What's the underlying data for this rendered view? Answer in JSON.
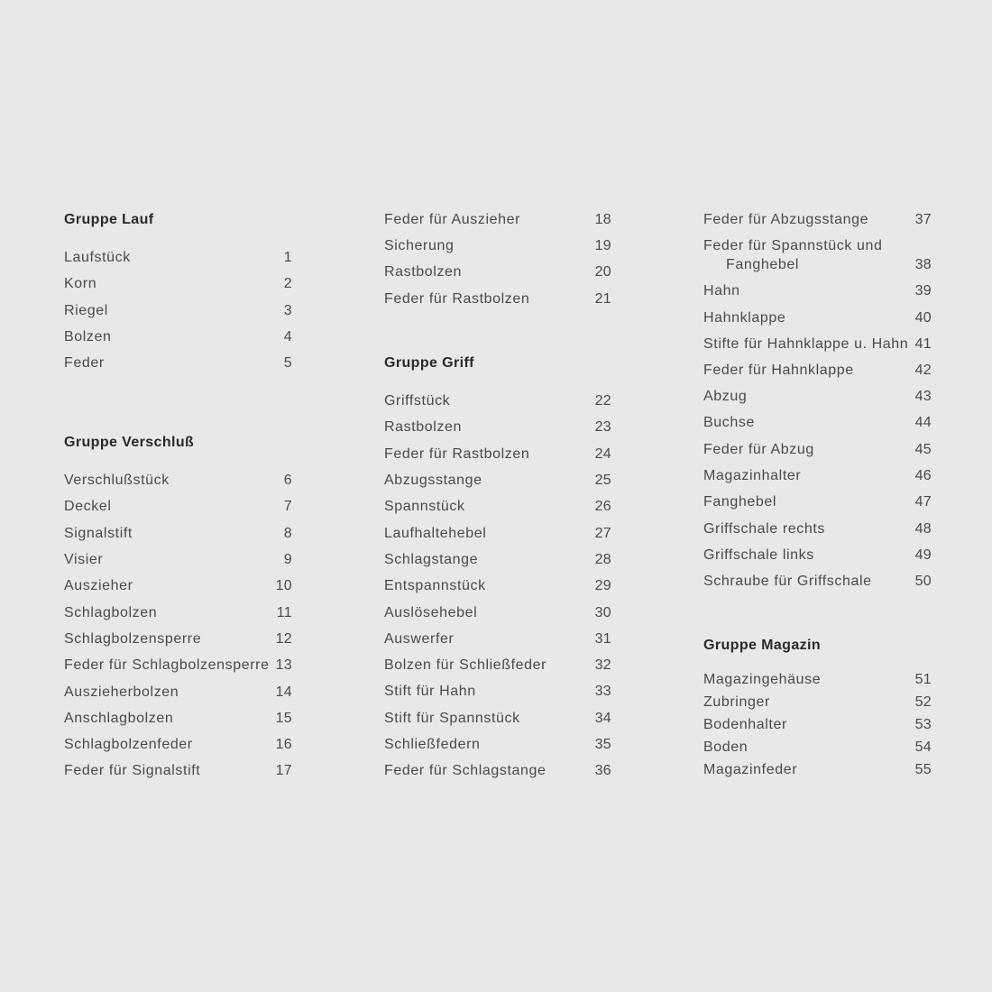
{
  "columns": [
    {
      "entries": [
        {
          "type": "heading",
          "text": "Gruppe Lauf"
        },
        {
          "type": "item",
          "name": "Laufstück",
          "number": "1"
        },
        {
          "type": "item",
          "name": "Korn",
          "number": "2"
        },
        {
          "type": "item",
          "name": "Riegel",
          "number": "3"
        },
        {
          "type": "item",
          "name": "Bolzen",
          "number": "4"
        },
        {
          "type": "item",
          "name": "Feder",
          "number": "5"
        },
        {
          "type": "heading",
          "text": "Gruppe Verschluß"
        },
        {
          "type": "item",
          "name": "Verschlußstück",
          "number": "6"
        },
        {
          "type": "item",
          "name": "Deckel",
          "number": "7"
        },
        {
          "type": "item",
          "name": "Signalstift",
          "number": "8"
        },
        {
          "type": "item",
          "name": "Visier",
          "number": "9"
        },
        {
          "type": "item",
          "name": "Auszieher",
          "number": "10"
        },
        {
          "type": "item",
          "name": "Schlagbolzen",
          "number": "11"
        },
        {
          "type": "item",
          "name": "Schlagbolzensperre",
          "number": "12"
        },
        {
          "type": "item",
          "name": "Feder für Schlagbolzensperre",
          "number": "13"
        },
        {
          "type": "item",
          "name": "Auszieherbolzen",
          "number": "14"
        },
        {
          "type": "item",
          "name": "Anschlagbolzen",
          "number": "15"
        },
        {
          "type": "item",
          "name": "Schlagbolzenfeder",
          "number": "16"
        },
        {
          "type": "item",
          "name": "Feder für Signalstift",
          "number": "17"
        }
      ]
    },
    {
      "entries": [
        {
          "type": "item",
          "name": "Feder für Auszieher",
          "number": "18"
        },
        {
          "type": "item",
          "name": "Sicherung",
          "number": "19"
        },
        {
          "type": "item",
          "name": "Rastbolzen",
          "number": "20"
        },
        {
          "type": "item",
          "name": "Feder für Rastbolzen",
          "number": "21"
        },
        {
          "type": "heading",
          "text": "Gruppe Griff"
        },
        {
          "type": "item",
          "name": "Griffstück",
          "number": "22"
        },
        {
          "type": "item",
          "name": "Rastbolzen",
          "number": "23"
        },
        {
          "type": "item",
          "name": "Feder für Rastbolzen",
          "number": "24"
        },
        {
          "type": "item",
          "name": "Abzugsstange",
          "number": "25"
        },
        {
          "type": "item",
          "name": "Spannstück",
          "number": "26"
        },
        {
          "type": "item",
          "name": "Laufhaltehebel",
          "number": "27"
        },
        {
          "type": "item",
          "name": "Schlagstange",
          "number": "28"
        },
        {
          "type": "item",
          "name": "Entspannstück",
          "number": "29"
        },
        {
          "type": "item",
          "name": "Auslösehebel",
          "number": "30"
        },
        {
          "type": "item",
          "name": "Auswerfer",
          "number": "31"
        },
        {
          "type": "item",
          "name": "Bolzen für Schließfeder",
          "number": "32"
        },
        {
          "type": "item",
          "name": "Stift für Hahn",
          "number": "33"
        },
        {
          "type": "item",
          "name": "Stift für Spannstück",
          "number": "34"
        },
        {
          "type": "item",
          "name": "Schließfedern",
          "number": "35"
        },
        {
          "type": "item",
          "name": "Feder für Schlagstange",
          "number": "36"
        }
      ]
    },
    {
      "entries": [
        {
          "type": "item",
          "name": "Feder für Abzugsstange",
          "number": "37"
        },
        {
          "type": "item",
          "name": "Feder für Spannstück und",
          "name2": "Fanghebel",
          "number": "38"
        },
        {
          "type": "item",
          "name": "Hahn",
          "number": "39"
        },
        {
          "type": "item",
          "name": "Hahnklappe",
          "number": "40"
        },
        {
          "type": "item",
          "name": "Stifte für Hahnklappe u. Hahn",
          "number": "41"
        },
        {
          "type": "item",
          "name": "Feder für Hahnklappe",
          "number": "42"
        },
        {
          "type": "item",
          "name": "Abzug",
          "number": "43"
        },
        {
          "type": "item",
          "name": "Buchse",
          "number": "44"
        },
        {
          "type": "item",
          "name": "Feder für Abzug",
          "number": "45"
        },
        {
          "type": "item",
          "name": "Magazinhalter",
          "number": "46"
        },
        {
          "type": "item",
          "name": "Fanghebel",
          "number": "47"
        },
        {
          "type": "item",
          "name": "Griffschale rechts",
          "number": "48"
        },
        {
          "type": "item",
          "name": "Griffschale links",
          "number": "49"
        },
        {
          "type": "item",
          "name": "Schraube für Griffschale",
          "number": "50"
        },
        {
          "type": "heading",
          "text": "Gruppe Magazin"
        },
        {
          "type": "item",
          "name": "Magazingehäuse",
          "number": "51"
        },
        {
          "type": "item",
          "name": "Zubringer",
          "number": "52"
        },
        {
          "type": "item",
          "name": "Bodenhalter",
          "number": "53"
        },
        {
          "type": "item",
          "name": "Boden",
          "number": "54"
        },
        {
          "type": "item",
          "name": "Magazinfeder",
          "number": "55"
        }
      ]
    }
  ]
}
